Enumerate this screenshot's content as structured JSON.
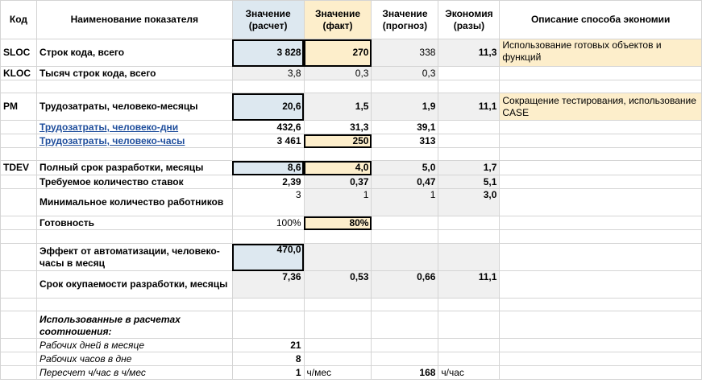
{
  "colors": {
    "calc_fill": "#dde8f0",
    "fact_fill": "#fdeecb",
    "gray_fill": "#f0f0f0",
    "link": "#1f4e9c",
    "gridline": "#d4d4d4"
  },
  "headers": {
    "code": "Код",
    "name": "Наименование показателя",
    "calc": "Значение (расчет)",
    "fact": "Значение (факт)",
    "forecast": "Значение (прогноз)",
    "saving": "Экономия (разы)",
    "desc": "Описание способа экономии"
  },
  "rows": {
    "sloc": {
      "code": "SLOC",
      "name": "Строк кода, всего",
      "calc": "3 828",
      "fact": "270",
      "forecast": "338",
      "saving": "11,3",
      "desc": "Использование готовых объектов и функций"
    },
    "kloc": {
      "code": "KLOC",
      "name": "Тысяч строк кода, всего",
      "calc": "3,8",
      "fact": "0,3",
      "forecast": "0,3"
    },
    "pm": {
      "code": "PM",
      "name": "Трудозатраты, человеко-месяцы",
      "calc": "20,6",
      "fact": "1,5",
      "forecast": "1,9",
      "saving": "11,1",
      "desc": "Сокращение тестирования, использование CASE"
    },
    "pd": {
      "name": "Трудозатраты, человеко-дни",
      "calc": "432,6",
      "fact": "31,3",
      "forecast": "39,1"
    },
    "ph": {
      "name": "Трудозатраты, человеко-часы",
      "calc": "3 461",
      "fact": "250",
      "forecast": "313"
    },
    "tdev": {
      "code": "TDEV",
      "name": "Полный срок разработки, месяцы",
      "calc": "8,6",
      "fact": "4,0",
      "forecast": "5,0",
      "saving": "1,7"
    },
    "staff": {
      "name": "Требуемое количество ставок",
      "calc": "2,39",
      "fact": "0,37",
      "forecast": "0,47",
      "saving": "5,1"
    },
    "minstaff": {
      "name": "Минимальное количество работников",
      "calc": "3",
      "fact": "1",
      "forecast": "1",
      "saving": "3,0"
    },
    "ready": {
      "name": "Готовность",
      "calc": "100%",
      "fact": "80%"
    },
    "effect": {
      "name": "Эффект от автоматизации, человеко-часы в месяц",
      "calc": "470,0"
    },
    "payback": {
      "name": "Срок окупаемости разработки, месяцы",
      "calc": "7,36",
      "fact": "0,53",
      "forecast": "0,66",
      "saving": "11,1"
    }
  },
  "ratios": {
    "title": "Использованные в расчетах соотношения:",
    "days": {
      "name": "Рабочих дней в месяце",
      "value": "21"
    },
    "hours": {
      "name": "Рабочих часов в дне",
      "value": "8"
    },
    "convert": {
      "name": "Пересчет ч/час в ч/мес",
      "value": "1",
      "unit1": "ч/мес",
      "value2": "168",
      "unit2": "ч/час"
    }
  }
}
